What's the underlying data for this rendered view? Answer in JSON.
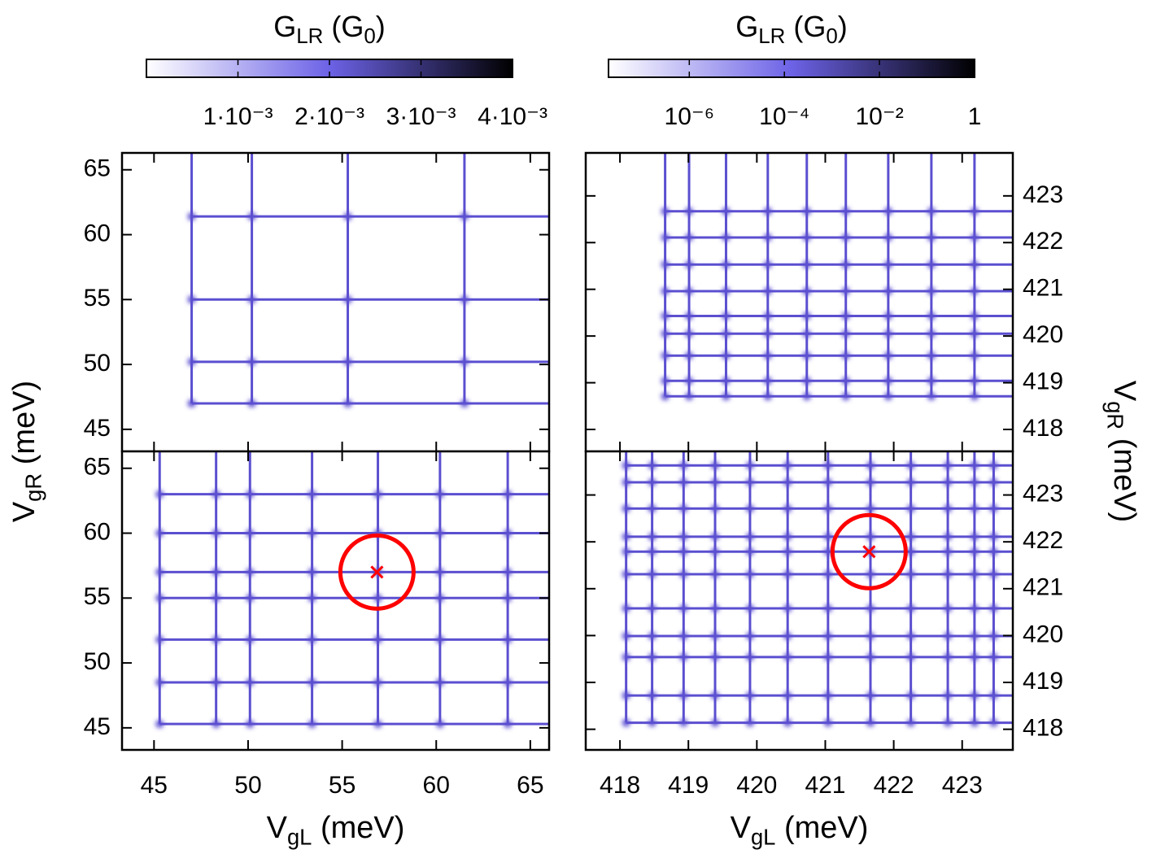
{
  "chart_data": [
    {
      "type": "colorbar",
      "title_parts": [
        "G",
        "LR",
        " (G",
        "0",
        ")"
      ],
      "xlim": [
        0,
        0.004
      ],
      "log": false,
      "xticks": [
        {
          "value": 0.001,
          "label": "1·10⁻³"
        },
        {
          "value": 0.002,
          "label": "2·10⁻³"
        },
        {
          "value": 0.003,
          "label": "3·10⁻³"
        },
        {
          "value": 0.004,
          "label": "4·10⁻³"
        }
      ],
      "colors": [
        "#ffffff",
        "#6c62e6",
        "#000000"
      ]
    },
    {
      "type": "colorbar",
      "title_parts": [
        "G",
        "LR",
        " (G",
        "0",
        ")"
      ],
      "xlim": [
        2e-08,
        1
      ],
      "log": true,
      "xticks": [
        {
          "value": 1e-06,
          "label": "10⁻⁶"
        },
        {
          "value": 0.0001,
          "label": "10⁻⁴"
        },
        {
          "value": 0.01,
          "label": "10⁻²"
        },
        1
      ],
      "colors": [
        "#ffffff",
        "#6c62e6",
        "#000000"
      ]
    },
    {
      "type": "heatmap",
      "xlim": [
        43.3,
        66.0
      ],
      "ylim": [
        43.3,
        66.3
      ],
      "xticks": [
        45,
        50,
        55,
        60,
        65
      ],
      "yticks": [
        45,
        50,
        55,
        60,
        65
      ],
      "ytick_side": "left",
      "ylabel_parts": [
        "V",
        "gR",
        " (meV)"
      ],
      "line_color": "#5b4fd0",
      "x_lines": [
        47.0,
        50.2,
        55.3,
        61.5
      ],
      "y_lines": [
        47.0,
        50.2,
        55.0,
        61.4
      ]
    },
    {
      "type": "heatmap",
      "xlim": [
        417.5,
        423.74
      ],
      "ylim": [
        417.53,
        423.92
      ],
      "xticks": [
        418,
        419,
        420,
        421,
        422,
        423
      ],
      "yticks": [
        418,
        419,
        420,
        421,
        422,
        423
      ],
      "ytick_side": "right",
      "ylabel_parts": [
        "V",
        "gR",
        " (meV)"
      ],
      "line_color": "#5b4fd0",
      "x_lines": [
        418.66,
        419.01,
        419.55,
        420.16,
        420.73,
        421.3,
        421.92,
        422.55,
        423.18
      ],
      "y_lines": [
        418.71,
        419.04,
        419.58,
        420.05,
        420.43,
        420.96,
        421.53,
        422.11,
        422.67
      ]
    },
    {
      "type": "heatmap",
      "xlim": [
        43.3,
        66.0
      ],
      "ylim": [
        43.3,
        66.3
      ],
      "xticks": [
        45,
        50,
        55,
        60,
        65
      ],
      "yticks": [
        45,
        50,
        55,
        60,
        65
      ],
      "ytick_side": "left",
      "xlabel_parts": [
        "V",
        "gL",
        " (meV)"
      ],
      "line_color": "#5b4fd0",
      "x_lines": [
        45.3,
        48.3,
        50.1,
        53.4,
        56.9,
        60.2,
        63.8
      ],
      "y_lines": [
        45.3,
        48.5,
        51.8,
        55.0,
        57.0,
        60.0,
        63.0
      ],
      "marker_x": 56.85,
      "marker_y": 57.0,
      "marker_color": "#ff0000"
    },
    {
      "type": "heatmap",
      "xlim": [
        417.5,
        423.74
      ],
      "ylim": [
        417.56,
        423.93
      ],
      "xticks": [
        418,
        419,
        420,
        421,
        422,
        423
      ],
      "yticks": [
        418,
        419,
        420,
        421,
        422,
        423
      ],
      "ytick_side": "right",
      "xlabel_parts": [
        "V",
        "gL",
        " (meV)"
      ],
      "line_color": "#5b4fd0",
      "x_lines": [
        418.09,
        418.47,
        418.93,
        419.39,
        419.9,
        420.45,
        421.04,
        421.66,
        422.25,
        422.79,
        423.18,
        423.46
      ],
      "y_lines": [
        418.14,
        418.72,
        419.54,
        419.99,
        420.58,
        421.31,
        421.79,
        422.11,
        422.71,
        423.27,
        423.63
      ],
      "marker_x": 421.64,
      "marker_y": 421.79,
      "marker_color": "#ff0000"
    }
  ]
}
